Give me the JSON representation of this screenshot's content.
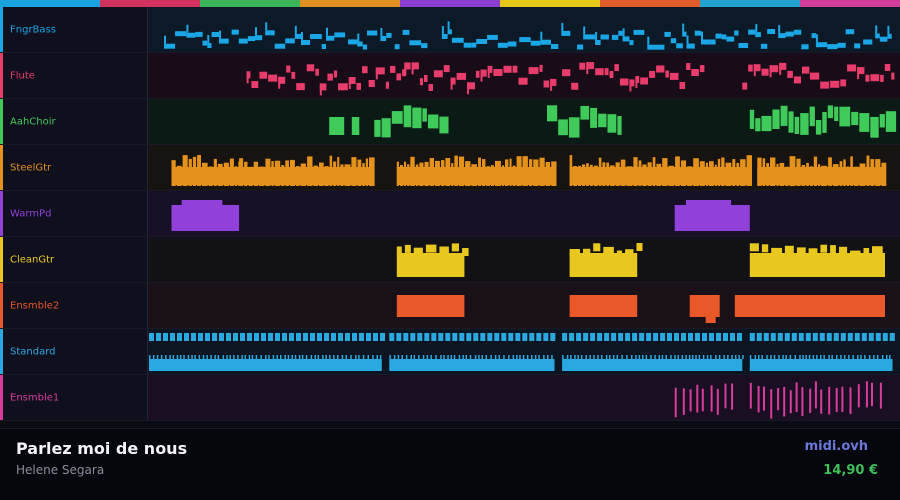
{
  "topbar_colors": [
    "#1aa3dc",
    "#d2335e",
    "#3cb45a",
    "#e09020",
    "#8a3fd0",
    "#e6c619",
    "#e05a2a",
    "#22a2d0",
    "#d23c9a"
  ],
  "tracks": [
    {
      "name": "FngrBass",
      "color": "#1ba6e6",
      "bg": "#0c1a28",
      "pattern": "bass",
      "phrases": [
        [
          0.02,
          0.37
        ],
        [
          0.39,
          0.56
        ],
        [
          0.57,
          0.71
        ],
        [
          0.71,
          0.99
        ]
      ]
    },
    {
      "name": "Flute",
      "color": "#e83c6a",
      "bg": "#180c18",
      "pattern": "melody",
      "phrases": [
        [
          0.13,
          0.2
        ],
        [
          0.21,
          0.34
        ],
        [
          0.34,
          0.54
        ],
        [
          0.55,
          0.74
        ],
        [
          0.79,
          0.88
        ],
        [
          0.88,
          0.99
        ]
      ]
    },
    {
      "name": "AahChoir",
      "color": "#3fca5a",
      "bg": "#0c1a16",
      "pattern": "choir",
      "phrases": [
        [
          0.24,
          0.26
        ],
        [
          0.27,
          0.28
        ],
        [
          0.3,
          0.4
        ],
        [
          0.53,
          0.63
        ],
        [
          0.8,
          0.99
        ]
      ]
    },
    {
      "name": "SteelGtr",
      "color": "#e4921c",
      "bg": "#171310",
      "pattern": "guitar",
      "phrases": [
        [
          0.03,
          0.12
        ],
        [
          0.12,
          0.3
        ],
        [
          0.33,
          0.54
        ],
        [
          0.56,
          0.8
        ],
        [
          0.81,
          0.98
        ]
      ]
    },
    {
      "name": "WarmPd",
      "color": "#9240da",
      "bg": "#160f26",
      "pattern": "pad",
      "phrases": [
        [
          0.03,
          0.12
        ],
        [
          0.7,
          0.8
        ]
      ]
    },
    {
      "name": "CleanGtr",
      "color": "#e8c81e",
      "bg": "#121216",
      "pattern": "chord",
      "phrases": [
        [
          0.33,
          0.42
        ],
        [
          0.56,
          0.65
        ],
        [
          0.8,
          0.98
        ]
      ]
    },
    {
      "name": "Ensmble2",
      "color": "#e85828",
      "bg": "#1a1018",
      "pattern": "block",
      "phrases": [
        [
          0.33,
          0.42
        ],
        [
          0.56,
          0.65
        ],
        [
          0.72,
          0.76
        ],
        [
          0.78,
          0.98
        ]
      ]
    },
    {
      "name": "Standard",
      "color": "#2aa8e0",
      "bg": "#0c1622",
      "pattern": "drums",
      "phrases": [
        [
          0.0,
          0.31
        ],
        [
          0.32,
          0.54
        ],
        [
          0.55,
          0.79
        ],
        [
          0.8,
          0.99
        ]
      ]
    },
    {
      "name": "Ensmble1",
      "color": "#d83c9c",
      "bg": "#1a0f22",
      "pattern": "strings",
      "phrases": [
        [
          0.7,
          0.78
        ],
        [
          0.8,
          0.98
        ]
      ]
    }
  ],
  "footer": {
    "title": "Parlez moi de nous",
    "artist": "Helene Segara",
    "site": "midi.ovh",
    "price": "14,90 €"
  }
}
